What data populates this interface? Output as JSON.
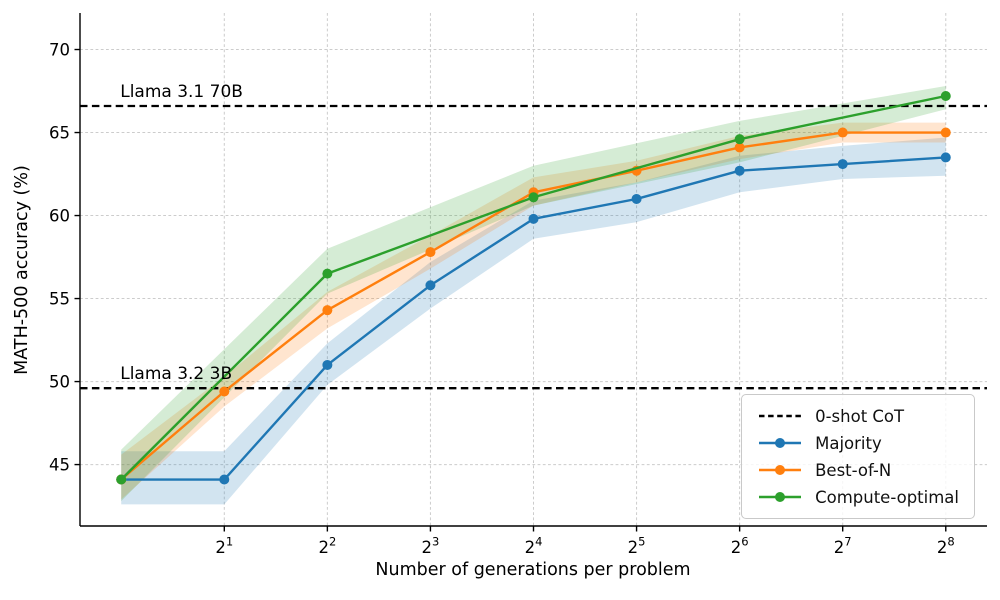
{
  "chart_data": {
    "type": "line",
    "title": "",
    "xlabel": "Number of generations per problem",
    "ylabel": "MATH-500 accuracy (%)",
    "x_scale": "log2",
    "x_tick_base": "2",
    "x_tick_exponents": [
      1,
      2,
      3,
      4,
      5,
      6,
      7,
      8
    ],
    "y_ticks": [
      45,
      50,
      55,
      60,
      65,
      70
    ],
    "xlim_exp": [
      -0.4,
      8.4
    ],
    "ylim": [
      41.3,
      72.2
    ],
    "grid": true,
    "grid_color": "#cccccc",
    "legend_position": "lower right",
    "hlines": [
      {
        "label": "Llama 3.1 70B",
        "value": 66.6,
        "style": "dashed",
        "color": "#000000"
      },
      {
        "label": "Llama 3.2 3B",
        "value": 49.6,
        "style": "dashed",
        "color": "#000000"
      }
    ],
    "series": [
      {
        "name": "Majority",
        "color": "#1f77b4",
        "x_exponents": [
          0,
          1,
          2,
          3,
          4,
          5,
          6,
          7,
          8
        ],
        "values": [
          44.1,
          44.1,
          51.0,
          55.8,
          59.8,
          61.0,
          62.7,
          63.1,
          63.5
        ],
        "band_lo": [
          42.6,
          42.6,
          49.8,
          54.4,
          58.6,
          59.6,
          61.4,
          62.2,
          62.4
        ],
        "band_hi": [
          45.8,
          45.8,
          52.3,
          57.2,
          60.9,
          62.0,
          63.6,
          64.2,
          64.7
        ]
      },
      {
        "name": "Best-of-N",
        "color": "#ff7f0e",
        "x_exponents": [
          0,
          1,
          2,
          3,
          4,
          5,
          6,
          7,
          8
        ],
        "values": [
          44.1,
          49.4,
          54.3,
          57.8,
          61.4,
          62.7,
          64.1,
          65.0,
          65.0
        ],
        "band_lo": [
          42.9,
          48.5,
          53.2,
          56.8,
          60.6,
          62.0,
          63.4,
          64.4,
          64.4
        ],
        "band_hi": [
          45.6,
          50.3,
          55.4,
          58.8,
          62.3,
          63.3,
          64.8,
          65.6,
          65.6
        ]
      },
      {
        "name": "Compute-optimal",
        "color": "#2ca02c",
        "x_exponents": [
          0,
          2,
          4,
          6,
          8
        ],
        "values": [
          44.1,
          56.5,
          61.1,
          64.6,
          67.2
        ],
        "band_lo": [
          42.8,
          55.3,
          60.6,
          63.2,
          66.4
        ],
        "band_hi": [
          45.9,
          58.0,
          63.0,
          65.7,
          67.8
        ]
      }
    ],
    "legend": [
      {
        "label": "0-shot CoT",
        "color": "#000000",
        "dashed": true,
        "marker": false
      },
      {
        "label": "Majority",
        "color": "#1f77b4",
        "dashed": false,
        "marker": true
      },
      {
        "label": "Best-of-N",
        "color": "#ff7f0e",
        "dashed": false,
        "marker": true
      },
      {
        "label": "Compute-optimal",
        "color": "#2ca02c",
        "dashed": false,
        "marker": true
      }
    ]
  }
}
